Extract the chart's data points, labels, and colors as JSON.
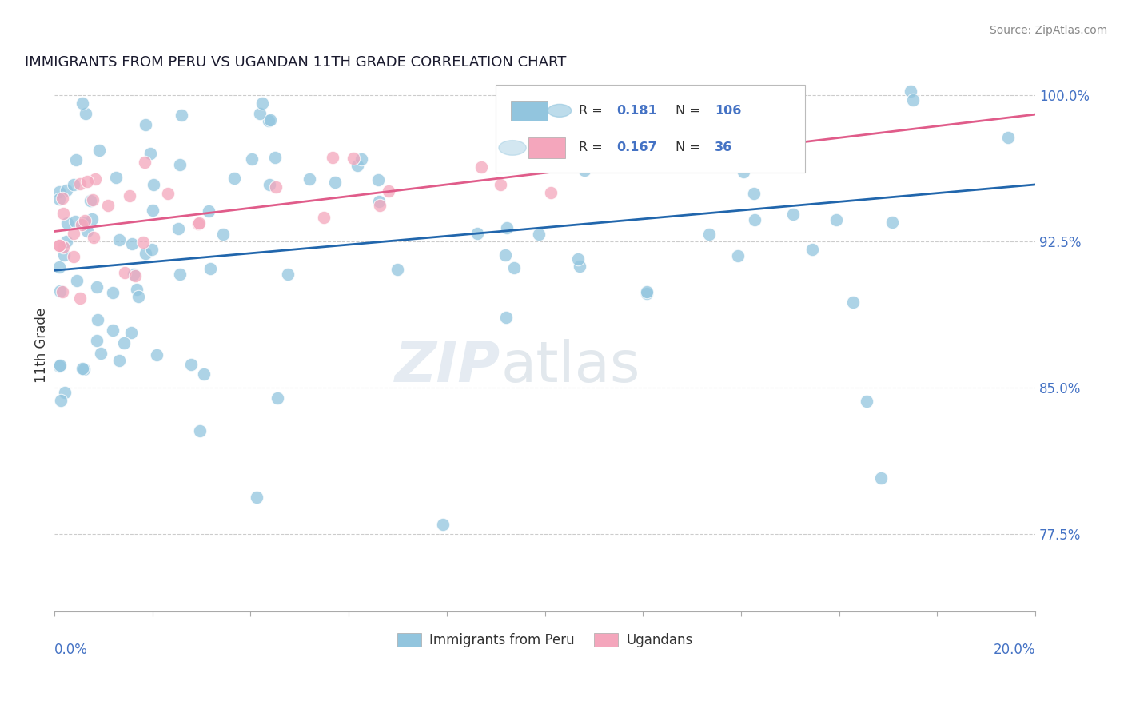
{
  "title": "IMMIGRANTS FROM PERU VS UGANDAN 11TH GRADE CORRELATION CHART",
  "source": "Source: ZipAtlas.com",
  "ylabel": "11th Grade",
  "xlim": [
    0.0,
    0.2
  ],
  "ylim": [
    0.735,
    1.008
  ],
  "yticks": [
    0.775,
    0.85,
    0.925,
    1.0
  ],
  "ytick_labels": [
    "77.5%",
    "85.0%",
    "92.5%",
    "100.0%"
  ],
  "R_peru": 0.181,
  "N_peru": 106,
  "R_ugandan": 0.167,
  "N_ugandan": 36,
  "blue_color": "#92c5de",
  "pink_color": "#f4a6bc",
  "blue_line_color": "#2166ac",
  "pink_line_color": "#e05c8a",
  "legend_label_peru": "Immigrants from Peru",
  "legend_label_ugandan": "Ugandans",
  "watermark_zip": "ZIP",
  "watermark_atlas": "atlas",
  "title_fontsize": 13,
  "source_fontsize": 10,
  "blue_intercept": 0.91,
  "blue_slope": 0.22,
  "pink_intercept": 0.93,
  "pink_slope": 0.3
}
